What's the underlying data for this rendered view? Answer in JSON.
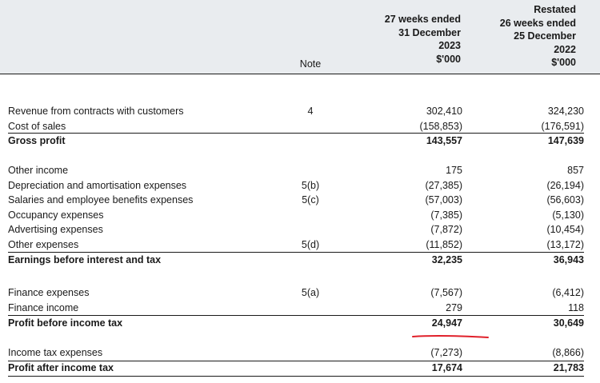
{
  "header": {
    "col1": [
      "27 weeks ended",
      "31 December",
      "2023",
      "$'000"
    ],
    "col2": [
      "Restated",
      "26 weeks ended",
      "25 December",
      "2022",
      "$'000"
    ],
    "note": "Note"
  },
  "rows": [
    {
      "label": "Revenue from contracts with customers",
      "note": "4",
      "v2023": "302,410",
      "v2022": "324,230"
    },
    {
      "label": "Cost of sales",
      "note": "",
      "v2023": "(158,853)",
      "v2022": "(176,591)"
    },
    {
      "label": "Gross profit",
      "note": "",
      "v2023": "143,557",
      "v2022": "147,639"
    },
    {
      "label": "Other income",
      "note": "",
      "v2023": "175",
      "v2022": "857"
    },
    {
      "label": "Depreciation and amortisation expenses",
      "note": "5(b)",
      "v2023": "(27,385)",
      "v2022": "(26,194)"
    },
    {
      "label": "Salaries and employee benefits expenses",
      "note": "5(c)",
      "v2023": "(57,003)",
      "v2022": "(56,603)"
    },
    {
      "label": "Occupancy expenses",
      "note": "",
      "v2023": "(7,385)",
      "v2022": "(5,130)"
    },
    {
      "label": "Advertising expenses",
      "note": "",
      "v2023": "(7,872)",
      "v2022": "(10,454)"
    },
    {
      "label": "Other expenses",
      "note": "5(d)",
      "v2023": "(11,852)",
      "v2022": "(13,172)"
    },
    {
      "label": "Earnings before interest and tax",
      "note": "",
      "v2023": "32,235",
      "v2022": "36,943"
    },
    {
      "label": "Finance expenses",
      "note": "5(a)",
      "v2023": "(7,567)",
      "v2022": "(6,412)"
    },
    {
      "label": "Finance income",
      "note": "",
      "v2023": "279",
      "v2022": "118"
    },
    {
      "label": "Profit before income tax",
      "note": "",
      "v2023": "24,947",
      "v2022": "30,649"
    },
    {
      "label": "Income tax expenses",
      "note": "",
      "v2023": "(7,273)",
      "v2022": "(8,866)"
    },
    {
      "label": "Profit after income tax",
      "note": "",
      "v2023": "17,674",
      "v2022": "21,783"
    }
  ],
  "colors": {
    "header_bg": "#e9ecef",
    "annotation": "#e0202a"
  }
}
